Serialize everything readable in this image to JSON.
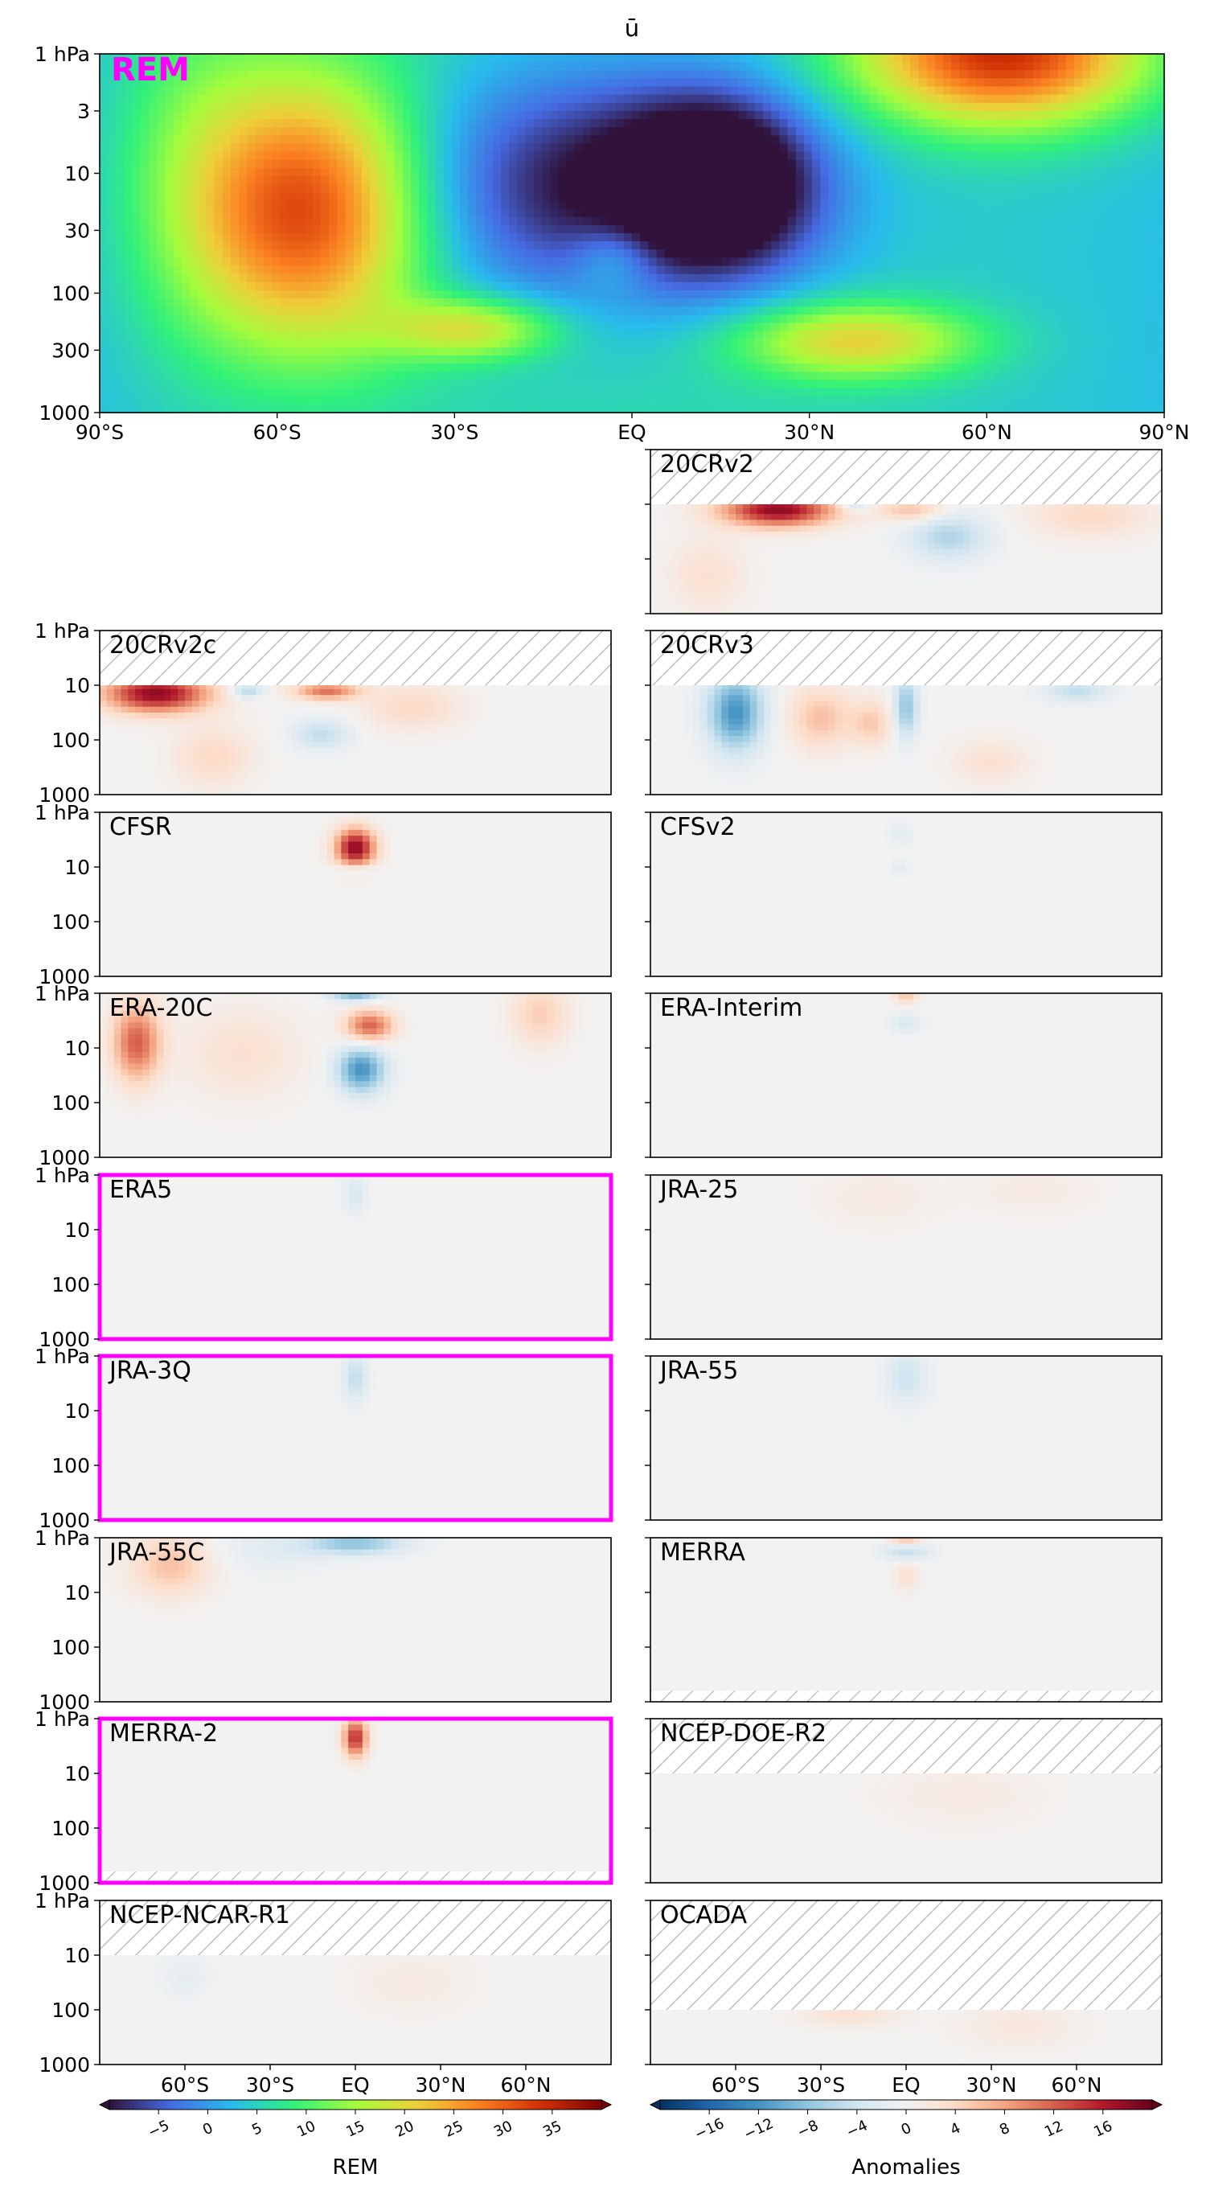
{
  "chart_data": {
    "type": "heatmap",
    "title": "ū",
    "x_ticks": [
      "90°S",
      "60°S",
      "30°S",
      "EQ",
      "30°N",
      "60°N",
      "90°N"
    ],
    "bottom_x_ticks": [
      "60°S",
      "30°S",
      "EQ",
      "30°N",
      "60°N"
    ],
    "main": {
      "label": "REM",
      "y_ticks": [
        "1 hPa",
        "3",
        "10",
        "30",
        "100",
        "300",
        "1000"
      ],
      "blobs": [
        {
          "lat": -55,
          "logp": 1.3,
          "rx": 14,
          "ry": 0.8,
          "v": 28
        },
        {
          "lat": -27,
          "logp": 2.3,
          "rx": 10,
          "ry": 0.18,
          "v": 14
        },
        {
          "lat": -5,
          "logp": 1.1,
          "rx": 24,
          "ry": 0.7,
          "v": -16
        },
        {
          "lat": 15,
          "logp": 1.1,
          "rx": 11,
          "ry": 0.5,
          "v": -18
        },
        {
          "lat": 63,
          "logp": 0.0,
          "rx": 17,
          "ry": 0.42,
          "v": 30
        },
        {
          "lat": 38,
          "logp": 2.4,
          "rx": 14,
          "ry": 0.22,
          "v": 16
        },
        {
          "lat": -3,
          "logp": 1.7,
          "rx": 5,
          "ry": 0.2,
          "v": 6
        },
        {
          "lat": -75,
          "logp": 0.8,
          "rx": 10,
          "ry": 1.2,
          "v": 5
        }
      ]
    },
    "anomaly_panels": [
      {
        "label": "20CRv2",
        "column": "right",
        "row": 0,
        "y_ticks": [],
        "top_hatch_hpa": 10,
        "bottom_hatch_hpa": null,
        "highlight": false,
        "blobs": [
          {
            "lat": -45,
            "logp": 1.1,
            "rx": 14,
            "ry": 0.22,
            "v": 18
          },
          {
            "lat": 15,
            "logp": 1.6,
            "rx": 10,
            "ry": 0.3,
            "v": -6
          },
          {
            "lat": 2,
            "logp": 1.1,
            "rx": 8,
            "ry": 0.15,
            "v": 6
          },
          {
            "lat": -18,
            "logp": 1.0,
            "rx": 4,
            "ry": 0.1,
            "v": -5
          },
          {
            "lat": 65,
            "logp": 1.2,
            "rx": 15,
            "ry": 0.3,
            "v": 4
          },
          {
            "lat": -70,
            "logp": 2.3,
            "rx": 10,
            "ry": 0.5,
            "v": 3
          }
        ]
      },
      {
        "label": "20CRv2c",
        "column": "left",
        "row": 1,
        "y_ticks": [
          "1 hPa",
          "10",
          "100",
          "1000"
        ],
        "top_hatch_hpa": 10,
        "bottom_hatch_hpa": null,
        "highlight": false,
        "blobs": [
          {
            "lat": -70,
            "logp": 1.15,
            "rx": 13,
            "ry": 0.25,
            "v": 18
          },
          {
            "lat": -10,
            "logp": 1.1,
            "rx": 8,
            "ry": 0.12,
            "v": 11
          },
          {
            "lat": -12,
            "logp": 1.9,
            "rx": 7,
            "ry": 0.2,
            "v": -5
          },
          {
            "lat": -38,
            "logp": 1.1,
            "rx": 4,
            "ry": 0.1,
            "v": -6
          },
          {
            "lat": 20,
            "logp": 1.4,
            "rx": 12,
            "ry": 0.3,
            "v": 4
          },
          {
            "lat": -50,
            "logp": 2.3,
            "rx": 10,
            "ry": 0.4,
            "v": 4
          }
        ]
      },
      {
        "label": "20CRv3",
        "column": "right",
        "row": 1,
        "y_ticks": [],
        "top_hatch_hpa": 10,
        "bottom_hatch_hpa": null,
        "highlight": false,
        "blobs": [
          {
            "lat": -60,
            "logp": 1.5,
            "rx": 7,
            "ry": 0.5,
            "v": -12
          },
          {
            "lat": -30,
            "logp": 1.6,
            "rx": 8,
            "ry": 0.4,
            "v": 6
          },
          {
            "lat": 0,
            "logp": 1.4,
            "rx": 3,
            "ry": 0.4,
            "v": -8
          },
          {
            "lat": -12,
            "logp": 1.7,
            "rx": 5,
            "ry": 0.3,
            "v": 5
          },
          {
            "lat": 60,
            "logp": 1.1,
            "rx": 8,
            "ry": 0.15,
            "v": -5
          },
          {
            "lat": 30,
            "logp": 2.4,
            "rx": 10,
            "ry": 0.3,
            "v": 3
          }
        ]
      },
      {
        "label": "CFSR",
        "column": "left",
        "row": 2,
        "y_ticks": [
          "1 hPa",
          "10",
          "100",
          "1000"
        ],
        "top_hatch_hpa": null,
        "bottom_hatch_hpa": null,
        "highlight": false,
        "blobs": [
          {
            "lat": 0,
            "logp": 0.65,
            "rx": 5,
            "ry": 0.25,
            "v": 18
          },
          {
            "lat": 0,
            "logp": 1.05,
            "rx": 5,
            "ry": 0.08,
            "v": -4
          }
        ]
      },
      {
        "label": "CFSv2",
        "column": "right",
        "row": 2,
        "y_ticks": [],
        "top_hatch_hpa": null,
        "bottom_hatch_hpa": null,
        "highlight": false,
        "blobs": [
          {
            "lat": -2,
            "logp": 0.4,
            "rx": 3,
            "ry": 0.15,
            "v": -2
          },
          {
            "lat": -2,
            "logp": 1.0,
            "rx": 2,
            "ry": 0.1,
            "v": -2
          }
        ]
      },
      {
        "label": "ERA-20C",
        "column": "left",
        "row": 3,
        "y_ticks": [
          "1 hPa",
          "10",
          "100",
          "1000"
        ],
        "top_hatch_hpa": null,
        "bottom_hatch_hpa": null,
        "highlight": false,
        "blobs": [
          {
            "lat": -77,
            "logp": 0.9,
            "rx": 6,
            "ry": 0.5,
            "v": 12
          },
          {
            "lat": 2,
            "logp": 1.4,
            "rx": 6,
            "ry": 0.3,
            "v": -12
          },
          {
            "lat": 5,
            "logp": 0.6,
            "rx": 6,
            "ry": 0.2,
            "v": 12
          },
          {
            "lat": 0,
            "logp": 0.0,
            "rx": 6,
            "ry": 0.1,
            "v": -10
          },
          {
            "lat": 65,
            "logp": 0.4,
            "rx": 7,
            "ry": 0.4,
            "v": 5
          },
          {
            "lat": -40,
            "logp": 1.1,
            "rx": 15,
            "ry": 0.6,
            "v": 3
          }
        ]
      },
      {
        "label": "ERA-Interim",
        "column": "right",
        "row": 3,
        "y_ticks": [],
        "top_hatch_hpa": null,
        "bottom_hatch_hpa": null,
        "highlight": false,
        "blobs": [
          {
            "lat": 0,
            "logp": 0.0,
            "rx": 3,
            "ry": 0.12,
            "v": 6
          },
          {
            "lat": 0,
            "logp": 0.55,
            "rx": 4,
            "ry": 0.12,
            "v": -3
          }
        ]
      },
      {
        "label": "ERA5",
        "column": "left",
        "row": 4,
        "y_ticks": [
          "1 hPa",
          "10",
          "100",
          "1000"
        ],
        "top_hatch_hpa": null,
        "bottom_hatch_hpa": null,
        "highlight": true,
        "blobs": [
          {
            "lat": 0,
            "logp": 0.35,
            "rx": 3,
            "ry": 0.25,
            "v": -3
          }
        ]
      },
      {
        "label": "JRA-25",
        "column": "right",
        "row": 4,
        "y_ticks": [],
        "top_hatch_hpa": null,
        "bottom_hatch_hpa": null,
        "highlight": false,
        "blobs": [
          {
            "lat": -10,
            "logp": 0.4,
            "rx": 15,
            "ry": 0.4,
            "v": 1.5
          },
          {
            "lat": 45,
            "logp": 0.3,
            "rx": 15,
            "ry": 0.3,
            "v": 1.5
          }
        ]
      },
      {
        "label": "JRA-3Q",
        "column": "left",
        "row": 5,
        "y_ticks": [
          "1 hPa",
          "10",
          "100",
          "1000"
        ],
        "top_hatch_hpa": null,
        "bottom_hatch_hpa": null,
        "highlight": true,
        "blobs": [
          {
            "lat": 0,
            "logp": 0.4,
            "rx": 3,
            "ry": 0.3,
            "v": -5
          }
        ]
      },
      {
        "label": "JRA-55",
        "column": "right",
        "row": 5,
        "y_ticks": [],
        "top_hatch_hpa": null,
        "bottom_hatch_hpa": null,
        "highlight": false,
        "blobs": [
          {
            "lat": 0,
            "logp": 0.4,
            "rx": 5,
            "ry": 0.35,
            "v": -4
          }
        ]
      },
      {
        "label": "JRA-55C",
        "column": "left",
        "row": 6,
        "y_ticks": [
          "1 hPa",
          "10",
          "100",
          "1000"
        ],
        "top_hatch_hpa": null,
        "bottom_hatch_hpa": null,
        "highlight": false,
        "blobs": [
          {
            "lat": 0,
            "logp": 0.1,
            "rx": 12,
            "ry": 0.15,
            "v": -8
          },
          {
            "lat": -65,
            "logp": 0.5,
            "rx": 10,
            "ry": 0.4,
            "v": 6
          },
          {
            "lat": -30,
            "logp": 0.2,
            "rx": 15,
            "ry": 0.3,
            "v": -2
          }
        ]
      },
      {
        "label": "MERRA",
        "column": "right",
        "row": 6,
        "y_ticks": [],
        "top_hatch_hpa": null,
        "bottom_hatch_hpa": 1000,
        "highlight": false,
        "blobs": [
          {
            "lat": 0,
            "logp": 0.0,
            "rx": 4,
            "ry": 0.1,
            "v": 7
          },
          {
            "lat": 0,
            "logp": 0.25,
            "rx": 6,
            "ry": 0.12,
            "v": -5
          },
          {
            "lat": 0,
            "logp": 0.7,
            "rx": 3,
            "ry": 0.2,
            "v": 3
          }
        ]
      },
      {
        "label": "MERRA-2",
        "column": "left",
        "row": 7,
        "y_ticks": [
          "1 hPa",
          "10",
          "100",
          "1000"
        ],
        "top_hatch_hpa": null,
        "bottom_hatch_hpa": 1000,
        "highlight": true,
        "blobs": [
          {
            "lat": 0,
            "logp": 0.35,
            "rx": 3,
            "ry": 0.25,
            "v": 15
          }
        ]
      },
      {
        "label": "NCEP-DOE-R2",
        "column": "right",
        "row": 7,
        "y_ticks": [],
        "top_hatch_hpa": 10,
        "bottom_hatch_hpa": null,
        "highlight": false,
        "blobs": [
          {
            "lat": 20,
            "logp": 1.4,
            "rx": 20,
            "ry": 0.4,
            "v": 1.5
          }
        ]
      },
      {
        "label": "NCEP-NCAR-R1",
        "column": "left",
        "row": 8,
        "y_ticks": [
          "1 hPa",
          "10",
          "100",
          "1000"
        ],
        "top_hatch_hpa": 10,
        "bottom_hatch_hpa": null,
        "highlight": false,
        "blobs": [
          {
            "lat": 20,
            "logp": 1.5,
            "rx": 15,
            "ry": 0.4,
            "v": 1.5
          },
          {
            "lat": -60,
            "logp": 1.4,
            "rx": 6,
            "ry": 0.3,
            "v": -1.5
          }
        ]
      },
      {
        "label": "OCADA",
        "column": "right",
        "row": 8,
        "y_ticks": [],
        "top_hatch_hpa": 100,
        "bottom_hatch_hpa": null,
        "highlight": false,
        "blobs": [
          {
            "lat": -20,
            "logp": 2.1,
            "rx": 12,
            "ry": 0.15,
            "v": 3
          },
          {
            "lat": 40,
            "logp": 2.3,
            "rx": 15,
            "ry": 0.3,
            "v": 2
          }
        ]
      }
    ],
    "colorbars": [
      {
        "label": "REM",
        "ticks": [
          "−5",
          "0",
          "5",
          "10",
          "15",
          "20",
          "25",
          "30",
          "35"
        ],
        "range": [
          -10,
          40
        ],
        "colormap": "turbo"
      },
      {
        "label": "Anomalies",
        "ticks": [
          "−16",
          "−12",
          "−8",
          "−4",
          "0",
          "4",
          "8",
          "12",
          "16"
        ],
        "range": [
          -20,
          20
        ],
        "colormap": "RdBu_r"
      }
    ],
    "highlight_color": "#ff00ff",
    "hatch_color": "#bbbbbb"
  }
}
